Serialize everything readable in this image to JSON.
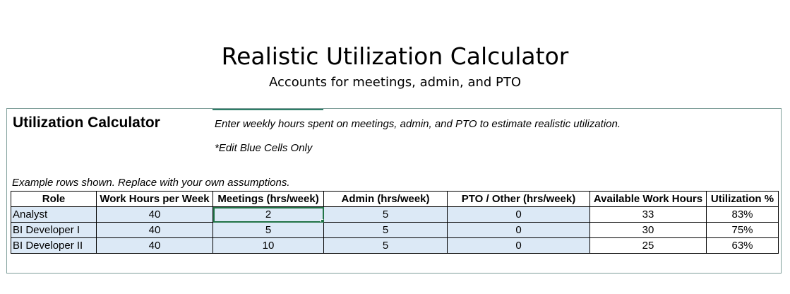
{
  "header": {
    "title": "Realistic Utilization Calculator",
    "subtitle": "Accounts for meetings, admin, and PTO"
  },
  "sheet": {
    "calculator_title": "Utilization Calculator",
    "instructions": "Enter weekly hours spent on meetings, admin, and PTO to estimate realistic utilization.",
    "edit_note": "*Edit Blue Cells Only",
    "example_note": "Example rows shown. Replace with your own assumptions."
  },
  "table": {
    "columns": [
      "Role",
      "Work Hours per Week",
      "Meetings (hrs/week)",
      "Admin (hrs/week)",
      "PTO / Other (hrs/week)",
      "Available Work Hours",
      "Utilization %"
    ],
    "rows": [
      [
        "Analyst",
        "40",
        "2",
        "5",
        "0",
        "33",
        "83%"
      ],
      [
        "BI Developer I",
        "40",
        "5",
        "5",
        "0",
        "30",
        "75%"
      ],
      [
        "BI Developer II",
        "40",
        "10",
        "5",
        "0",
        "25",
        "63%"
      ]
    ]
  },
  "colors": {
    "input_cell": "#dce9f6",
    "selection": "#217346",
    "sheet_border": "#7f9f9a"
  }
}
